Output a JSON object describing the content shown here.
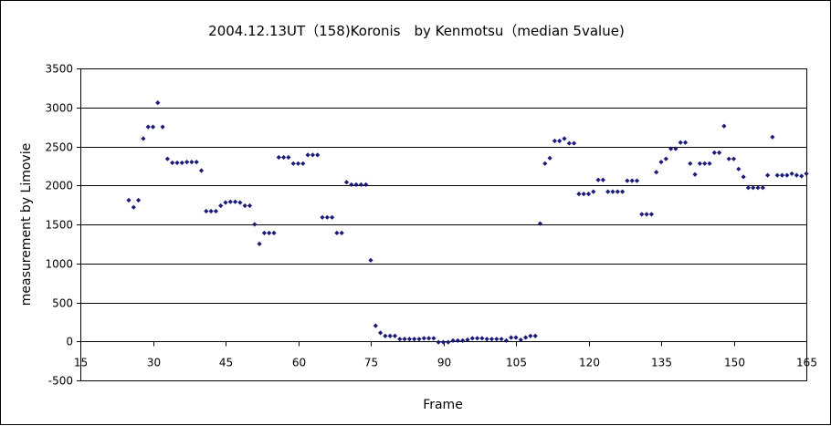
{
  "chart_data": {
    "type": "scatter",
    "title": "2004.12.13UT（158)Koronis　by Kenmotsu（median 5value)",
    "xlabel": "Frame",
    "ylabel": "measurement by Limovie",
    "xlim": [
      15,
      165
    ],
    "ylim": [
      -500,
      3500
    ],
    "xticks": [
      15,
      30,
      45,
      60,
      75,
      90,
      105,
      120,
      135,
      150,
      165
    ],
    "yticks": [
      -500,
      0,
      500,
      1000,
      1500,
      2000,
      2500,
      3000,
      3500
    ],
    "grid": "horizontal",
    "legend": "none",
    "marker_color": "#1a1a7a",
    "series": [
      {
        "x": [
          25,
          26,
          27,
          28,
          29,
          30,
          31,
          32,
          33,
          34,
          35,
          36,
          37,
          38,
          39,
          40,
          41,
          42,
          43,
          44,
          45,
          46,
          47,
          48,
          49,
          50,
          51,
          52,
          53,
          54,
          55,
          56,
          57,
          58,
          59,
          60,
          61,
          62,
          63,
          64,
          65,
          66,
          67,
          68,
          69,
          70,
          71,
          72,
          73,
          74,
          75,
          76,
          77,
          78,
          79,
          80,
          81,
          82,
          83,
          84,
          85,
          86,
          87,
          88,
          89,
          90,
          91,
          92,
          93,
          94,
          95,
          96,
          97,
          98,
          99,
          100,
          101,
          102,
          103,
          104,
          105,
          106,
          107,
          108,
          109,
          110,
          111,
          112,
          113,
          114,
          115,
          116,
          117,
          118,
          119,
          120,
          121,
          122,
          123,
          124,
          125,
          126,
          127,
          128,
          129,
          130,
          131,
          132,
          133,
          134,
          135,
          136,
          137,
          138,
          139,
          140,
          141,
          142,
          143,
          144,
          145,
          146,
          147,
          148,
          149,
          150,
          151,
          152,
          153,
          154,
          155,
          156,
          157,
          158,
          159,
          160,
          161,
          162,
          163,
          164,
          165
        ],
        "y": [
          1810,
          1720,
          1810,
          2600,
          2750,
          2750,
          3060,
          2750,
          2340,
          2290,
          2290,
          2290,
          2300,
          2300,
          2300,
          2190,
          1670,
          1670,
          1670,
          1740,
          1780,
          1790,
          1790,
          1780,
          1740,
          1740,
          1500,
          1250,
          1390,
          1390,
          1390,
          2360,
          2360,
          2360,
          2280,
          2280,
          2280,
          2390,
          2390,
          2390,
          1590,
          1590,
          1590,
          1390,
          1390,
          2040,
          2010,
          2010,
          2010,
          2010,
          1040,
          200,
          110,
          70,
          70,
          70,
          30,
          30,
          30,
          30,
          30,
          40,
          40,
          40,
          -10,
          -10,
          -10,
          10,
          10,
          10,
          20,
          40,
          40,
          40,
          30,
          30,
          30,
          30,
          10,
          50,
          50,
          20,
          50,
          70,
          70,
          1510,
          2280,
          2350,
          2570,
          2570,
          2600,
          2540,
          2540,
          1890,
          1890,
          1890,
          1920,
          2070,
          2070,
          1920,
          1920,
          1920,
          1920,
          2060,
          2060,
          2060,
          1630,
          1630,
          1630,
          2170,
          2300,
          2340,
          2470,
          2470,
          2550,
          2550,
          2280,
          2140,
          2280,
          2280,
          2280,
          2420,
          2420,
          2760,
          2340,
          2340,
          2210,
          2110,
          1970,
          1970,
          1970,
          1970,
          2130,
          2620,
          2130,
          2130,
          2130,
          2150,
          2130,
          2120,
          2150
        ]
      }
    ]
  }
}
